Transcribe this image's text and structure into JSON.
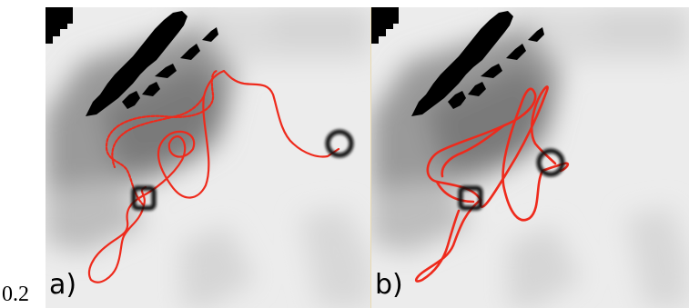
{
  "figure": {
    "page_number": "0.2",
    "panels": [
      {
        "id": "a",
        "label": "a)"
      },
      {
        "id": "b",
        "label": "b)"
      }
    ],
    "colors": {
      "trajectory": "#ee2a1c",
      "obstacle": "#000000",
      "cost_light": "#ededed",
      "cost_mid": "#c6c6c6",
      "cost_dark": "#8a8a8a",
      "start_marker": "#111111",
      "goal_marker": "#111111"
    },
    "markers": {
      "start": "square-marker",
      "goal": "circle-marker"
    }
  }
}
